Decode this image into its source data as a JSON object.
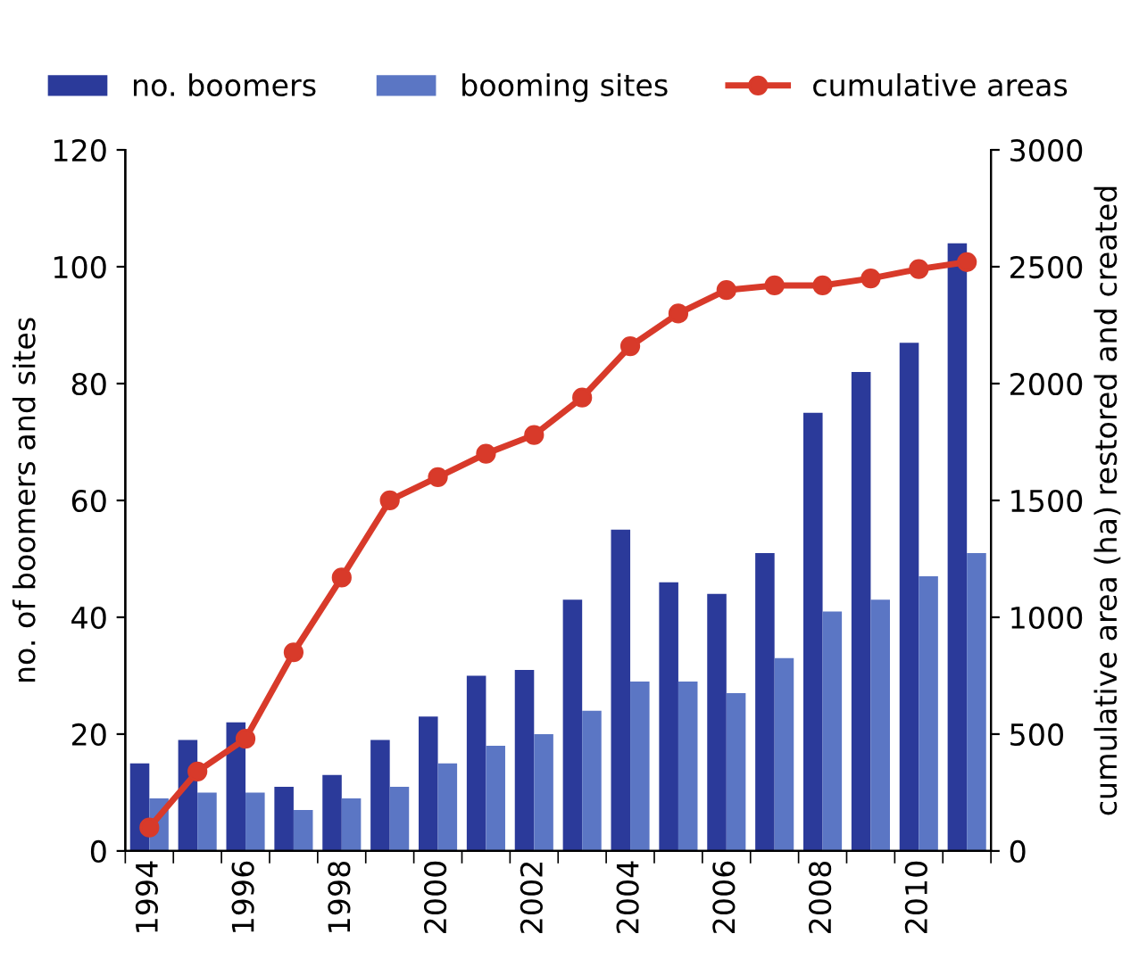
{
  "chart_data": {
    "type": "bar",
    "ylabel": "no. of boomers and sites",
    "y2label": "cumulative area (ha) restored and created",
    "categories": [
      "1994",
      null,
      "1996",
      null,
      "1998",
      null,
      "2000",
      null,
      "2002",
      null,
      "2004",
      null,
      "2006",
      null,
      "2008",
      null,
      "2010",
      null
    ],
    "series": [
      {
        "name": "no. boomers",
        "color": "#2b3a9a",
        "values": [
          15,
          19,
          22,
          11,
          13,
          19,
          23,
          30,
          31,
          43,
          55,
          46,
          44,
          51,
          75,
          82,
          87,
          104
        ]
      },
      {
        "name": "booming sites",
        "color": "#5b76c4",
        "values": [
          9,
          10,
          10,
          7,
          9,
          11,
          15,
          18,
          20,
          24,
          29,
          29,
          27,
          33,
          41,
          43,
          47,
          51
        ]
      },
      {
        "name": "cumulative areas",
        "type": "line",
        "axis": "y2",
        "color": "#d83a2a",
        "marker": "circle",
        "values": [
          100,
          340,
          480,
          850,
          1170,
          1500,
          1600,
          1700,
          1780,
          1940,
          2160,
          2300,
          2400,
          2420,
          2420,
          2450,
          2490,
          2520
        ]
      }
    ],
    "ylim": [
      0,
      120
    ],
    "yticks": [
      0,
      20,
      40,
      60,
      80,
      100,
      120
    ],
    "y2lim": [
      0,
      3000
    ],
    "y2ticks": [
      0,
      500,
      1000,
      1500,
      2000,
      2500,
      3000
    ],
    "grid": false,
    "legend": "top"
  }
}
